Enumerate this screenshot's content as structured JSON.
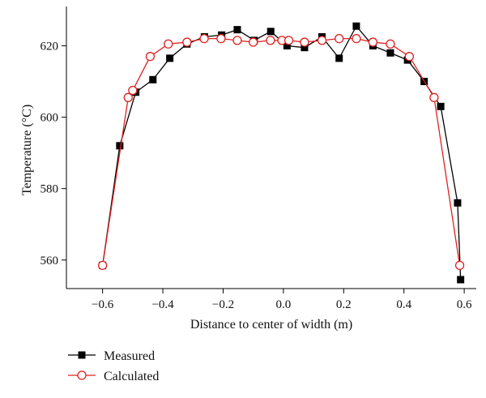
{
  "chart_data": {
    "type": "line",
    "title": "",
    "xlabel": "Distance to center of width (m)",
    "ylabel": "Temperature (°C)",
    "xlim": [
      -0.72,
      0.64
    ],
    "ylim": [
      552,
      631
    ],
    "x_ticks": [
      -0.6,
      -0.4,
      -0.2,
      0.0,
      0.2,
      0.4,
      0.6
    ],
    "x_tick_labels": [
      "−0.6",
      "−0.4",
      "−0.2",
      "0.0",
      "0.2",
      "0.4",
      "0.6"
    ],
    "y_ticks": [
      560,
      580,
      600,
      620
    ],
    "y_tick_labels": [
      "560",
      "580",
      "600",
      "620"
    ],
    "grid": false,
    "legend_position": "bottom-left, below plot",
    "series": [
      {
        "name": "Measured",
        "color": "#000000",
        "marker": "filled-square",
        "x": [
          -0.6,
          -0.543,
          -0.49,
          -0.433,
          -0.377,
          -0.32,
          -0.262,
          -0.205,
          -0.153,
          -0.097,
          -0.042,
          0.012,
          0.07,
          0.128,
          0.185,
          0.242,
          0.297,
          0.355,
          0.412,
          0.467,
          0.522,
          0.578,
          0.588
        ],
        "y": [
          558.5,
          592,
          607,
          610.5,
          616.5,
          620.5,
          622.5,
          623,
          624.5,
          621.5,
          624,
          620,
          619.5,
          622.5,
          616.5,
          625.5,
          620,
          618,
          616,
          610,
          603,
          576,
          554.5
        ]
      },
      {
        "name": "Calculated",
        "color": "#e02020",
        "marker": "open-circle",
        "x": [
          -0.6,
          -0.515,
          -0.5,
          -0.442,
          -0.382,
          -0.32,
          -0.263,
          -0.207,
          -0.153,
          -0.1,
          -0.043,
          -0.005,
          0.018,
          0.07,
          0.128,
          0.185,
          0.242,
          0.297,
          0.355,
          0.418,
          0.5,
          0.585
        ],
        "y": [
          558.5,
          605.5,
          607.5,
          617,
          620.5,
          621,
          622,
          622,
          621.5,
          621,
          621.5,
          621.5,
          621.5,
          621,
          621.5,
          622,
          622,
          621,
          620.5,
          617,
          605.5,
          558.5
        ]
      }
    ]
  }
}
